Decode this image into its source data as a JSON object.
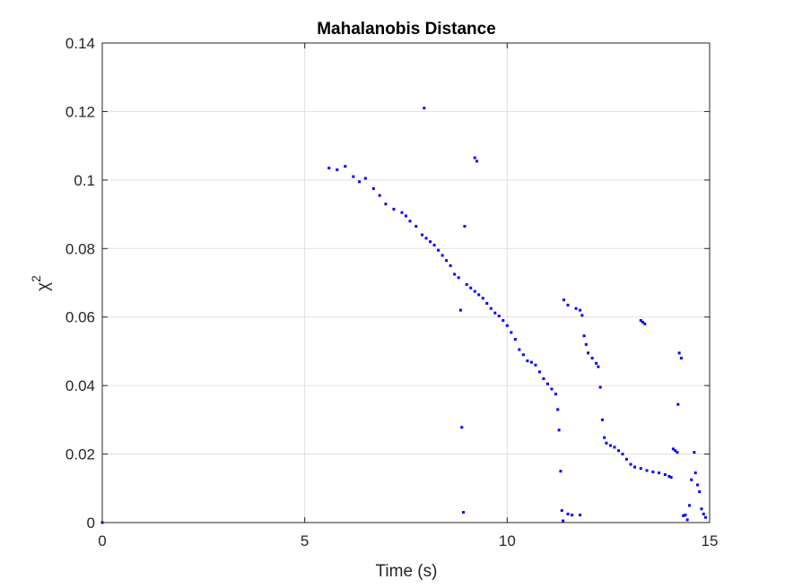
{
  "chart_data": {
    "type": "scatter",
    "title": "Mahalanobis Distance",
    "xlabel": "Time (s)",
    "ylabel_base": "χ",
    "ylabel_sup": "2",
    "xlim": [
      0,
      15
    ],
    "ylim": [
      0,
      0.14
    ],
    "xticks": [
      0,
      5,
      10,
      15
    ],
    "yticks": [
      0,
      0.02,
      0.04,
      0.06,
      0.08,
      0.1,
      0.12,
      0.14
    ],
    "xtick_labels": [
      "0",
      "5",
      "10",
      "15"
    ],
    "ytick_labels": [
      "0",
      "0.02",
      "0.04",
      "0.06",
      "0.08",
      "0.1",
      "0.12",
      "0.14"
    ],
    "grid": true,
    "marker_color": "#0000ff",
    "series": [
      {
        "points": [
          [
            0,
            0
          ],
          [
            5.6,
            0.1035
          ],
          [
            5.8,
            0.103
          ],
          [
            6.0,
            0.104
          ],
          [
            6.2,
            0.101
          ],
          [
            6.35,
            0.0995
          ],
          [
            6.5,
            0.1005
          ],
          [
            6.7,
            0.0975
          ],
          [
            6.85,
            0.0955
          ],
          [
            7.0,
            0.093
          ],
          [
            7.2,
            0.0915
          ],
          [
            7.4,
            0.0905
          ],
          [
            7.5,
            0.0895
          ],
          [
            7.6,
            0.088
          ],
          [
            7.75,
            0.0865
          ],
          [
            7.95,
            0.121
          ],
          [
            7.9,
            0.084
          ],
          [
            8.0,
            0.083
          ],
          [
            8.1,
            0.082
          ],
          [
            8.2,
            0.081
          ],
          [
            8.3,
            0.0795
          ],
          [
            8.4,
            0.078
          ],
          [
            8.5,
            0.0765
          ],
          [
            8.6,
            0.075
          ],
          [
            8.7,
            0.0725
          ],
          [
            8.8,
            0.0715
          ],
          [
            8.85,
            0.062
          ],
          [
            8.88,
            0.0278
          ],
          [
            8.92,
            0.003
          ],
          [
            8.95,
            0.0865
          ],
          [
            9.0,
            0.0695
          ],
          [
            9.1,
            0.0685
          ],
          [
            9.2,
            0.1065
          ],
          [
            9.25,
            0.1055
          ],
          [
            9.2,
            0.0675
          ],
          [
            9.3,
            0.0665
          ],
          [
            9.4,
            0.0655
          ],
          [
            9.5,
            0.064
          ],
          [
            9.6,
            0.0625
          ],
          [
            9.7,
            0.0612
          ],
          [
            9.8,
            0.0603
          ],
          [
            9.9,
            0.059
          ],
          [
            10.0,
            0.0575
          ],
          [
            10.1,
            0.0555
          ],
          [
            10.2,
            0.0535
          ],
          [
            10.3,
            0.0505
          ],
          [
            10.4,
            0.049
          ],
          [
            10.5,
            0.0472
          ],
          [
            10.6,
            0.0468
          ],
          [
            10.7,
            0.046
          ],
          [
            10.8,
            0.044
          ],
          [
            10.9,
            0.042
          ],
          [
            11.0,
            0.0405
          ],
          [
            11.1,
            0.039
          ],
          [
            11.2,
            0.0375
          ],
          [
            11.25,
            0.033
          ],
          [
            11.28,
            0.027
          ],
          [
            11.32,
            0.015
          ],
          [
            11.35,
            0.0035
          ],
          [
            11.38,
            0.0005
          ],
          [
            11.4,
            0.065
          ],
          [
            11.5,
            0.0635
          ],
          [
            11.5,
            0.0025
          ],
          [
            11.6,
            0.0022
          ],
          [
            11.8,
            0.0022
          ],
          [
            11.7,
            0.0625
          ],
          [
            11.8,
            0.062
          ],
          [
            11.85,
            0.0605
          ],
          [
            11.9,
            0.0545
          ],
          [
            11.95,
            0.052
          ],
          [
            12.0,
            0.0495
          ],
          [
            12.1,
            0.048
          ],
          [
            12.2,
            0.0465
          ],
          [
            12.25,
            0.0455
          ],
          [
            12.3,
            0.0395
          ],
          [
            12.35,
            0.03
          ],
          [
            12.4,
            0.0248
          ],
          [
            12.45,
            0.0232
          ],
          [
            12.55,
            0.0225
          ],
          [
            12.65,
            0.022
          ],
          [
            12.75,
            0.021
          ],
          [
            12.85,
            0.02
          ],
          [
            12.95,
            0.0185
          ],
          [
            13.05,
            0.017
          ],
          [
            13.15,
            0.0162
          ],
          [
            13.3,
            0.0158
          ],
          [
            13.3,
            0.059
          ],
          [
            13.35,
            0.0585
          ],
          [
            13.4,
            0.058
          ],
          [
            13.45,
            0.0152
          ],
          [
            13.6,
            0.0148
          ],
          [
            13.75,
            0.0145
          ],
          [
            13.9,
            0.014
          ],
          [
            14.0,
            0.0135
          ],
          [
            14.05,
            0.0132
          ],
          [
            14.1,
            0.0215
          ],
          [
            14.15,
            0.021
          ],
          [
            14.2,
            0.0205
          ],
          [
            14.22,
            0.0345
          ],
          [
            14.25,
            0.0495
          ],
          [
            14.3,
            0.048
          ],
          [
            14.35,
            0.002
          ],
          [
            14.4,
            0.0022
          ],
          [
            14.45,
            0.0008
          ],
          [
            14.5,
            0.005
          ],
          [
            14.55,
            0.0125
          ],
          [
            14.62,
            0.0205
          ],
          [
            14.65,
            0.0145
          ],
          [
            14.7,
            0.011
          ],
          [
            14.75,
            0.009
          ],
          [
            14.8,
            0.004
          ],
          [
            14.85,
            0.0025
          ],
          [
            14.9,
            0.0015
          ]
        ]
      }
    ]
  }
}
